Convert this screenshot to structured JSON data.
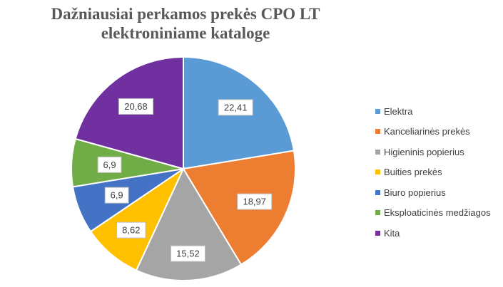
{
  "chart_data": {
    "type": "pie",
    "title": "Dažniausiai perkamos prekės CPO LT elektroniniame kataloge",
    "categories": [
      "Elektra",
      "Kanceliarinės prekės",
      "Higieninis popierius",
      "Buities prekės",
      "Biuro popierius",
      "Eksploaticinės medžiagos",
      "Kita"
    ],
    "values": [
      22.41,
      18.97,
      15.52,
      8.62,
      6.9,
      6.9,
      20.68
    ],
    "labels": [
      "22,41",
      "18,97",
      "15,52",
      "8,62",
      "6,9",
      "6,9",
      "20,68"
    ],
    "colors": [
      "#5B9BD5",
      "#ED7D31",
      "#A5A5A5",
      "#FFC000",
      "#4472C4",
      "#70AD47",
      "#7030A0"
    ],
    "legend_position": "right"
  }
}
